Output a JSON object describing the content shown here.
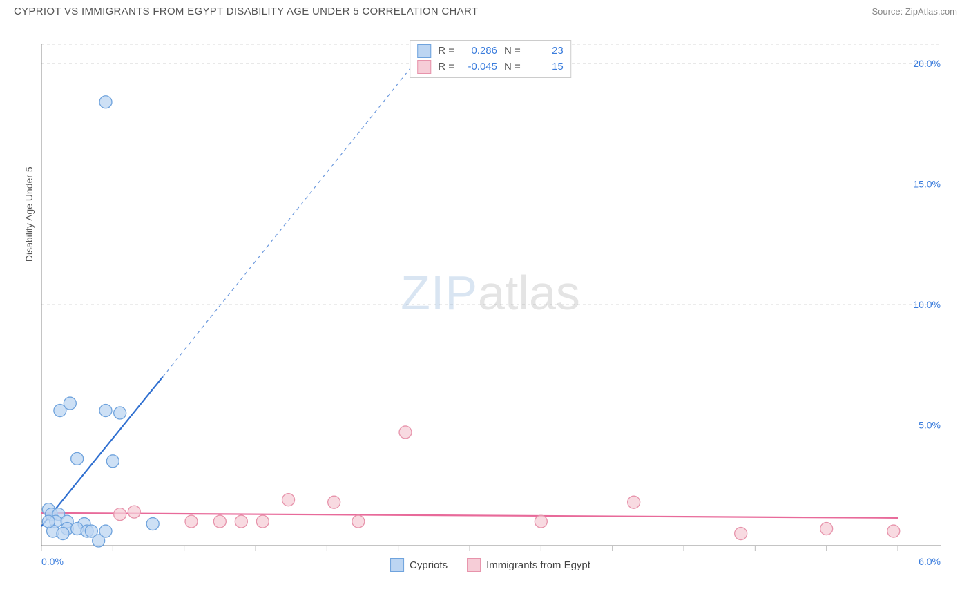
{
  "header": {
    "title": "CYPRIOT VS IMMIGRANTS FROM EGYPT DISABILITY AGE UNDER 5 CORRELATION CHART",
    "source": "Source: ZipAtlas.com"
  },
  "y_axis_label": "Disability Age Under 5",
  "watermark": {
    "zip": "ZIP",
    "atlas": "atlas"
  },
  "chart": {
    "type": "scatter",
    "background_color": "#ffffff",
    "grid_color": "#d9d9d9",
    "axis_color": "#888888",
    "tick_color": "#bbbbbb",
    "xlim": [
      0.0,
      6.0
    ],
    "ylim": [
      0.0,
      20.8
    ],
    "x_ticks_major": [
      0.0,
      6.0
    ],
    "x_ticks_minor_step": 0.5,
    "y_ticks_major": [
      5.0,
      10.0,
      15.0,
      20.0
    ],
    "x_tick_labels": {
      "left": "0.0%",
      "right": "6.0%"
    },
    "y_tick_labels": [
      "5.0%",
      "10.0%",
      "15.0%",
      "20.0%"
    ],
    "marker_radius": 9,
    "marker_stroke_width": 1.3,
    "trendline_width": 2.2,
    "series": {
      "cypriots": {
        "label": "Cypriots",
        "fill": "#bcd5f2",
        "stroke": "#6fa3dd",
        "line_color": "#2f6fd0",
        "points": [
          [
            0.45,
            18.4
          ],
          [
            0.2,
            5.9
          ],
          [
            0.13,
            5.6
          ],
          [
            0.45,
            5.6
          ],
          [
            0.55,
            5.5
          ],
          [
            0.25,
            3.6
          ],
          [
            0.5,
            3.5
          ],
          [
            0.05,
            1.5
          ],
          [
            0.07,
            1.3
          ],
          [
            0.12,
            1.3
          ],
          [
            0.1,
            1.0
          ],
          [
            0.18,
            1.0
          ],
          [
            0.3,
            0.9
          ],
          [
            0.18,
            0.7
          ],
          [
            0.25,
            0.7
          ],
          [
            0.32,
            0.6
          ],
          [
            0.35,
            0.6
          ],
          [
            0.45,
            0.6
          ],
          [
            0.78,
            0.9
          ],
          [
            0.08,
            0.6
          ],
          [
            0.15,
            0.5
          ],
          [
            0.4,
            0.2
          ],
          [
            0.05,
            1.0
          ]
        ],
        "trendline": {
          "x1": 0.0,
          "y1": 0.8,
          "x2": 0.85,
          "y2": 7.0,
          "extend_to": [
            2.72,
            20.8
          ]
        }
      },
      "egypt": {
        "label": "Immigrants from Egypt",
        "fill": "#f6cdd7",
        "stroke": "#e793ab",
        "line_color": "#e86a9a",
        "points": [
          [
            2.55,
            4.7
          ],
          [
            1.73,
            1.9
          ],
          [
            2.05,
            1.8
          ],
          [
            0.55,
            1.3
          ],
          [
            0.65,
            1.4
          ],
          [
            1.05,
            1.0
          ],
          [
            1.25,
            1.0
          ],
          [
            1.4,
            1.0
          ],
          [
            1.55,
            1.0
          ],
          [
            2.22,
            1.0
          ],
          [
            3.5,
            1.0
          ],
          [
            4.15,
            1.8
          ],
          [
            4.9,
            0.5
          ],
          [
            5.5,
            0.7
          ],
          [
            5.97,
            0.6
          ]
        ],
        "trendline": {
          "x1": 0.0,
          "y1": 1.35,
          "x2": 6.0,
          "y2": 1.15
        }
      }
    }
  },
  "stats_box": {
    "rows": [
      {
        "swatch_fill": "#bcd5f2",
        "swatch_stroke": "#6fa3dd",
        "r_label": "R =",
        "r_val": "0.286",
        "n_label": "N =",
        "n_val": "23"
      },
      {
        "swatch_fill": "#f6cdd7",
        "swatch_stroke": "#e793ab",
        "r_label": "R =",
        "r_val": "-0.045",
        "n_label": "N =",
        "n_val": "15"
      }
    ]
  },
  "legend": {
    "items": [
      {
        "swatch_fill": "#bcd5f2",
        "swatch_stroke": "#6fa3dd",
        "label": "Cypriots"
      },
      {
        "swatch_fill": "#f6cdd7",
        "swatch_stroke": "#e793ab",
        "label": "Immigrants from Egypt"
      }
    ]
  }
}
